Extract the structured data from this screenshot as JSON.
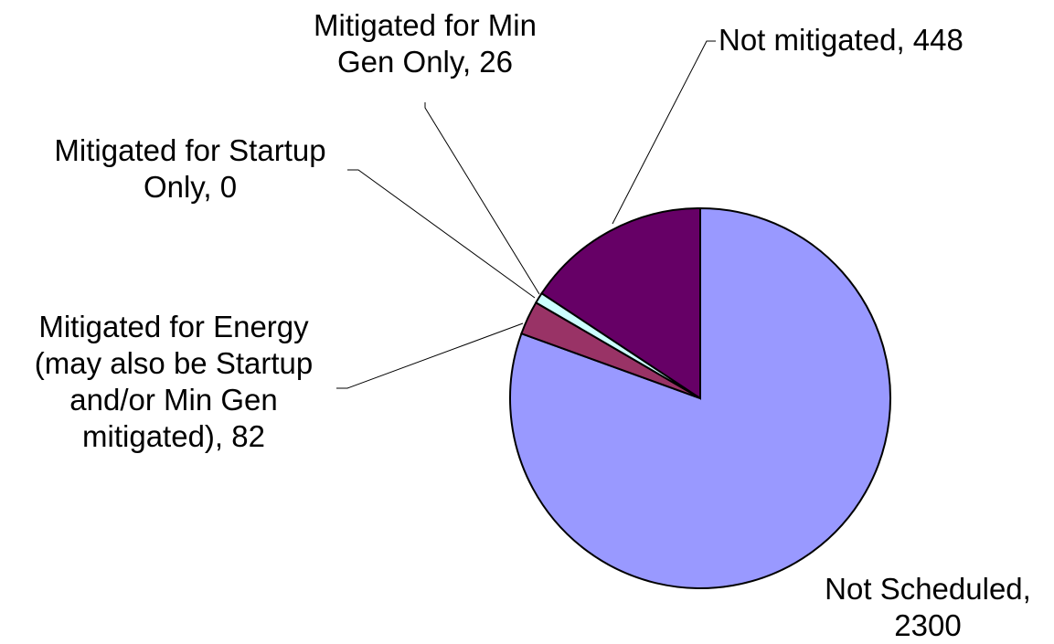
{
  "chart_data": {
    "type": "pie",
    "categories": [
      "Not Scheduled",
      "Mitigated for Energy (may also be Startup and/or Min Gen mitigated)",
      "Mitigated for Startup Only",
      "Mitigated for Min Gen Only",
      "Not mitigated"
    ],
    "values": [
      2300,
      82,
      0,
      26,
      448
    ],
    "colors": [
      "#9999ff",
      "#993366",
      "#ffffcc",
      "#ccffff",
      "#660066"
    ],
    "label_separator": ", "
  }
}
